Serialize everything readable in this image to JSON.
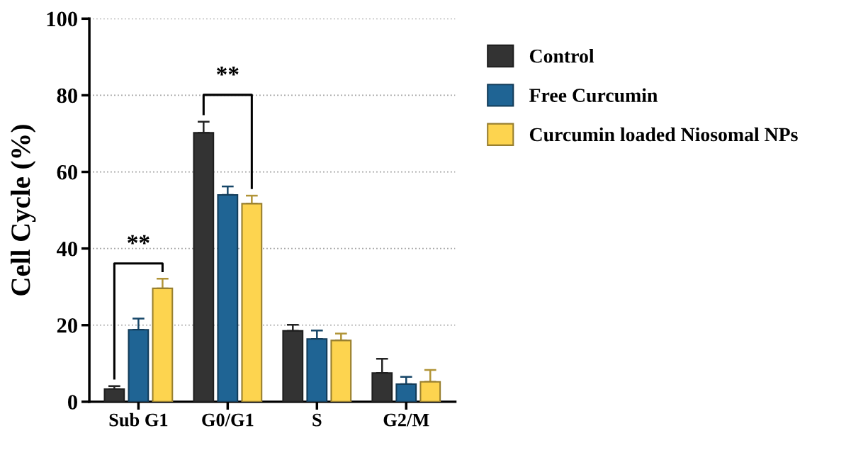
{
  "chart_data": {
    "type": "bar",
    "ylabel": "Cell Cycle (%)",
    "categories": [
      "Sub G1",
      "G0/G1",
      "S",
      "G2/M"
    ],
    "series": [
      {
        "name": "Control",
        "color": "#333333",
        "values": [
          3.3,
          70.2,
          18.5,
          7.5
        ],
        "errors": [
          [
            3.3,
            4.1
          ],
          [
            70.2,
            73.1
          ],
          [
            18.5,
            20.1
          ],
          [
            7.5,
            11.2
          ]
        ]
      },
      {
        "name": "Free Curcumin",
        "color": "#1f6494",
        "values": [
          18.8,
          54.0,
          16.4,
          4.6
        ],
        "errors": [
          [
            18.8,
            21.7
          ],
          [
            54.0,
            56.2
          ],
          [
            16.4,
            18.6
          ],
          [
            4.6,
            6.5
          ]
        ]
      },
      {
        "name": "Curcumin loaded Niosomal NPs",
        "color": "#fdd44f",
        "values": [
          29.6,
          51.7,
          16.0,
          5.2
        ],
        "errors": [
          [
            29.6,
            32.1
          ],
          [
            51.7,
            53.8
          ],
          [
            16.0,
            17.8
          ],
          [
            5.2,
            8.3
          ]
        ]
      }
    ],
    "annotations": [
      "**",
      "**"
    ],
    "ylim": [
      0,
      100
    ],
    "yticks": [
      0,
      20,
      40,
      60,
      80,
      100
    ],
    "grid": "y",
    "legend": "right"
  }
}
